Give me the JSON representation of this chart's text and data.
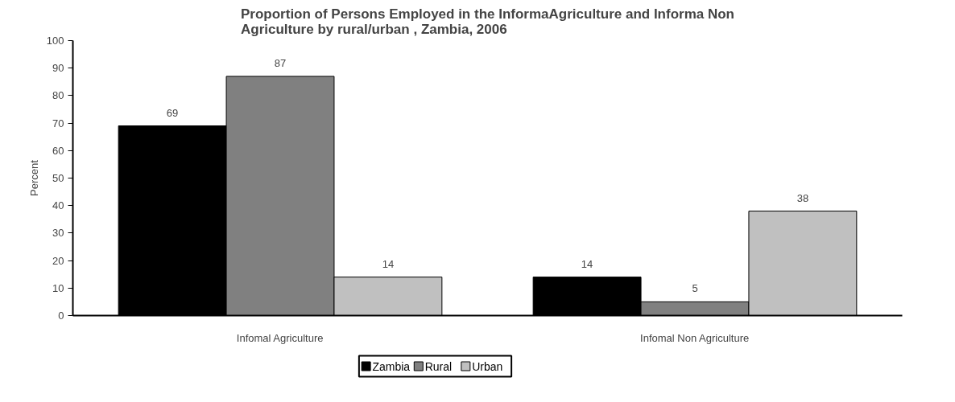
{
  "chart_data": {
    "type": "bar",
    "title": "Proportion of Persons Employed in the InformaAgriculture and Informa Non\nAgriculture by rural/urban , Zambia, 2006",
    "ylabel": "Percent",
    "categories": [
      "Infomal Agriculture",
      "Infomal Non Agriculture"
    ],
    "series": [
      {
        "name": "Zambia",
        "color": "#000000",
        "values": [
          69,
          14
        ]
      },
      {
        "name": "Rural",
        "color": "#808080",
        "values": [
          87,
          5
        ]
      },
      {
        "name": "Urban",
        "color": "#c0c0c0",
        "values": [
          14,
          38
        ]
      }
    ],
    "ylim": [
      0,
      100
    ],
    "yticks": [
      0,
      10,
      20,
      30,
      40,
      50,
      60,
      70,
      80,
      90,
      100
    ],
    "grid": false,
    "legend": "bottom",
    "data_labels": true
  }
}
